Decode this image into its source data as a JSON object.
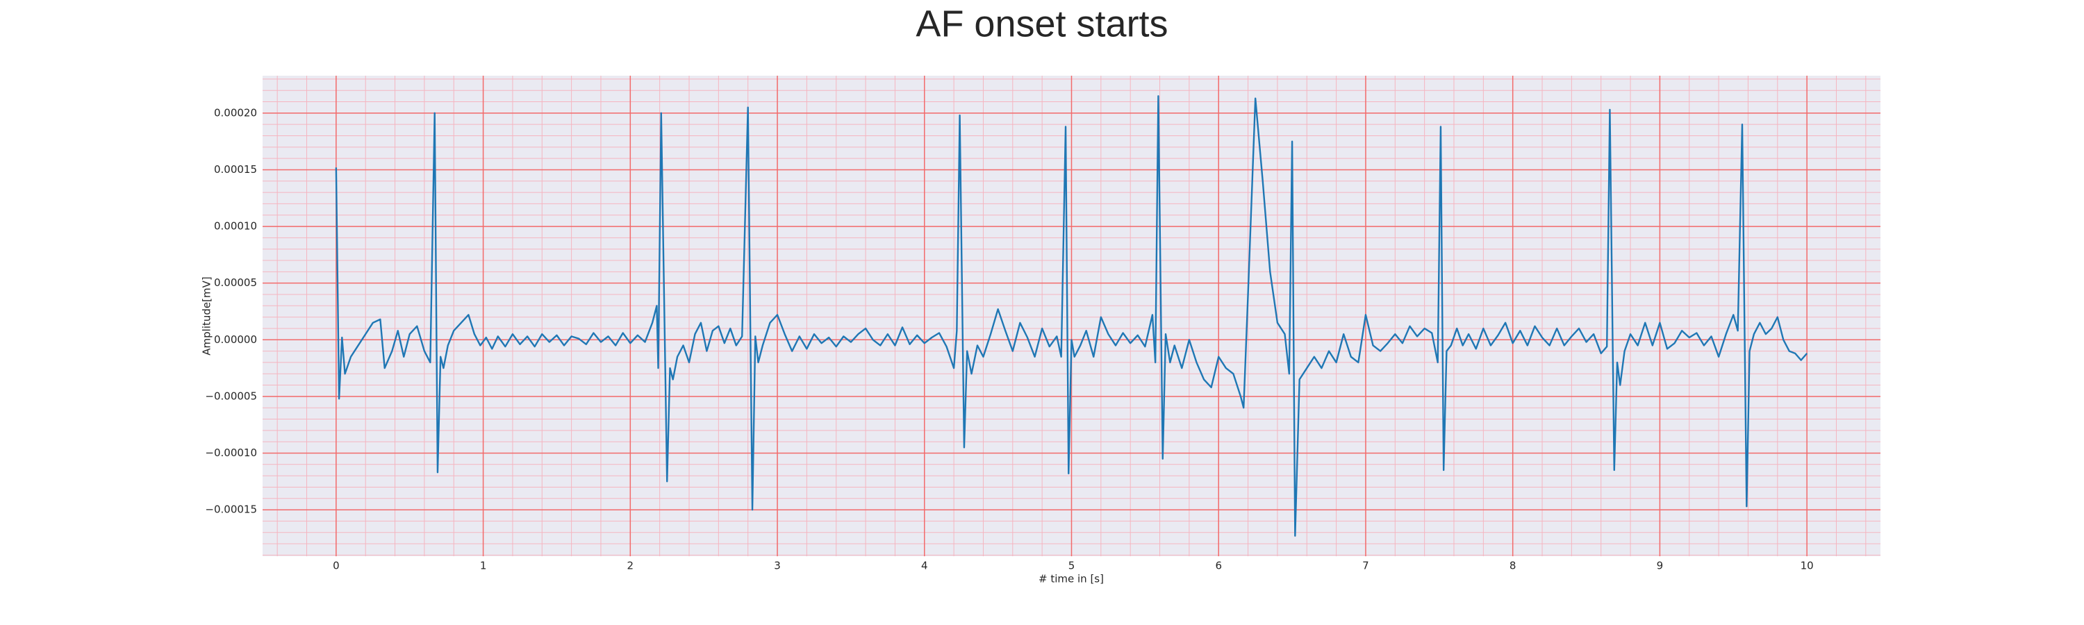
{
  "chart_data": {
    "type": "line",
    "title": "AF onset starts",
    "x_label": "# time in [s]",
    "y_label": "Amplitude[mV]",
    "color": "#1f77b4",
    "background": "#eaeaf2",
    "grid": true,
    "grid_color": "#f26b6b",
    "minor_grid": true,
    "minor_grid_color": "#f5b5c0",
    "minor_divisions": 5,
    "x": [
      0,
      0.02,
      0.04,
      0.06,
      0.1,
      0.15,
      0.2,
      0.25,
      0.3,
      0.33,
      0.38,
      0.42,
      0.46,
      0.5,
      0.55,
      0.6,
      0.64,
      0.67,
      0.69,
      0.71,
      0.73,
      0.76,
      0.8,
      0.85,
      0.9,
      0.94,
      0.98,
      1.02,
      1.06,
      1.1,
      1.15,
      1.2,
      1.25,
      1.3,
      1.35,
      1.4,
      1.45,
      1.5,
      1.55,
      1.6,
      1.65,
      1.7,
      1.75,
      1.8,
      1.85,
      1.9,
      1.95,
      2.0,
      2.05,
      2.1,
      2.15,
      2.18,
      2.19,
      2.21,
      2.25,
      2.27,
      2.29,
      2.32,
      2.36,
      2.4,
      2.44,
      2.48,
      2.52,
      2.56,
      2.6,
      2.64,
      2.68,
      2.72,
      2.76,
      2.8,
      2.83,
      2.85,
      2.87,
      2.9,
      2.95,
      3.0,
      3.05,
      3.1,
      3.15,
      3.2,
      3.25,
      3.3,
      3.35,
      3.4,
      3.45,
      3.5,
      3.55,
      3.6,
      3.65,
      3.7,
      3.75,
      3.8,
      3.85,
      3.9,
      3.95,
      4.0,
      4.05,
      4.1,
      4.15,
      4.2,
      4.22,
      4.24,
      4.27,
      4.29,
      4.32,
      4.36,
      4.4,
      4.45,
      4.5,
      4.55,
      4.6,
      4.65,
      4.7,
      4.75,
      4.8,
      4.85,
      4.9,
      4.93,
      4.96,
      4.98,
      5.0,
      5.02,
      5.06,
      5.1,
      5.15,
      5.2,
      5.25,
      5.3,
      5.35,
      5.4,
      5.45,
      5.5,
      5.55,
      5.57,
      5.59,
      5.62,
      5.64,
      5.67,
      5.7,
      5.75,
      5.8,
      5.85,
      5.9,
      5.95,
      6.0,
      6.05,
      6.1,
      6.15,
      6.17,
      6.2,
      6.25,
      6.3,
      6.35,
      6.4,
      6.45,
      6.48,
      6.5,
      6.52,
      6.55,
      6.6,
      6.65,
      6.7,
      6.75,
      6.8,
      6.85,
      6.9,
      6.95,
      7.0,
      7.05,
      7.1,
      7.15,
      7.2,
      7.25,
      7.3,
      7.35,
      7.4,
      7.45,
      7.49,
      7.51,
      7.53,
      7.55,
      7.58,
      7.62,
      7.66,
      7.7,
      7.75,
      7.8,
      7.85,
      7.9,
      7.95,
      8.0,
      8.05,
      8.1,
      8.15,
      8.2,
      8.25,
      8.3,
      8.35,
      8.4,
      8.45,
      8.5,
      8.55,
      8.6,
      8.64,
      8.66,
      8.69,
      8.71,
      8.73,
      8.76,
      8.8,
      8.85,
      8.9,
      8.95,
      9.0,
      9.05,
      9.1,
      9.15,
      9.2,
      9.25,
      9.3,
      9.35,
      9.4,
      9.45,
      9.5,
      9.53,
      9.56,
      9.59,
      9.61,
      9.64,
      9.68,
      9.72,
      9.76,
      9.8,
      9.84,
      9.88,
      9.92,
      9.96,
      10.0
    ],
    "values": [
      0.000152,
      -5.2e-05,
      2e-06,
      -3e-05,
      -1.5e-05,
      -5e-06,
      5e-06,
      1.5e-05,
      1.8e-05,
      -2.5e-05,
      -1e-05,
      8e-06,
      -1.5e-05,
      5e-06,
      1.2e-05,
      -1e-05,
      -2e-05,
      0.0002,
      -0.000117,
      -1.5e-05,
      -2.5e-05,
      -5e-06,
      8e-06,
      1.5e-05,
      2.2e-05,
      5e-06,
      -5e-06,
      2e-06,
      -8e-06,
      3e-06,
      -6e-06,
      5e-06,
      -4e-06,
      3e-06,
      -6e-06,
      5e-06,
      -2e-06,
      4e-06,
      -5e-06,
      3e-06,
      1e-06,
      -4e-06,
      6e-06,
      -2e-06,
      3e-06,
      -5e-06,
      6e-06,
      -3e-06,
      4e-06,
      -2e-06,
      1.5e-05,
      3e-05,
      -2.5e-05,
      0.0002,
      -0.000125,
      -2.5e-05,
      -3.5e-05,
      -1.5e-05,
      -5e-06,
      -2e-05,
      5e-06,
      1.5e-05,
      -1e-05,
      8e-06,
      1.2e-05,
      -3e-06,
      1e-05,
      -5e-06,
      3e-06,
      0.000205,
      -0.00015,
      3e-06,
      -2e-05,
      -5e-06,
      1.5e-05,
      2.2e-05,
      5e-06,
      -1e-05,
      3e-06,
      -8e-06,
      5e-06,
      -3e-06,
      2e-06,
      -6e-06,
      3e-06,
      -2e-06,
      5e-06,
      1e-05,
      0,
      -5e-06,
      5e-06,
      -5e-06,
      1.1e-05,
      -4e-06,
      4e-06,
      -3e-06,
      2e-06,
      6e-06,
      -6e-06,
      -2.5e-05,
      8e-06,
      0.000198,
      -9.5e-05,
      -1e-05,
      -3e-05,
      -5e-06,
      -1.5e-05,
      5e-06,
      2.7e-05,
      8e-06,
      -1e-05,
      1.5e-05,
      2e-06,
      -1.5e-05,
      1e-05,
      -6e-06,
      3e-06,
      -1.5e-05,
      0.000188,
      -0.000118,
      0,
      -1.5e-05,
      -5e-06,
      8e-06,
      -1.5e-05,
      2e-05,
      5e-06,
      -5e-06,
      6e-06,
      -3e-06,
      4e-06,
      -6e-06,
      2.2e-05,
      -2e-05,
      0.000215,
      -0.000105,
      5e-06,
      -2e-05,
      -5e-06,
      -2.5e-05,
      0,
      -2e-05,
      -3.5e-05,
      -4.2e-05,
      -1.5e-05,
      -2.5e-05,
      -3e-05,
      -5e-05,
      -6e-05,
      4e-05,
      0.000213,
      0.00014,
      6e-05,
      1.5e-05,
      5e-06,
      -3e-05,
      0.000175,
      -0.000173,
      -3.5e-05,
      -2.5e-05,
      -1.5e-05,
      -2.5e-05,
      -1e-05,
      -2e-05,
      5e-06,
      -1.5e-05,
      -2e-05,
      2.2e-05,
      -5e-06,
      -1e-05,
      -3e-06,
      5e-06,
      -3e-06,
      1.2e-05,
      3e-06,
      1e-05,
      6e-06,
      -2e-05,
      0.000188,
      -0.000115,
      -1e-05,
      -5e-06,
      1e-05,
      -5e-06,
      5e-06,
      -8e-06,
      1e-05,
      -5e-06,
      4e-06,
      1.5e-05,
      -3e-06,
      8e-06,
      -5e-06,
      1.2e-05,
      2e-06,
      -5e-06,
      1e-05,
      -5e-06,
      3e-06,
      1e-05,
      -2e-06,
      5e-06,
      -1.2e-05,
      -6e-06,
      0.000203,
      -0.000115,
      -2e-05,
      -4e-05,
      -1e-05,
      5e-06,
      -5e-06,
      1.5e-05,
      -5e-06,
      1.5e-05,
      -8e-06,
      -3e-06,
      8e-06,
      2e-06,
      6e-06,
      -5e-06,
      3e-06,
      -1.5e-05,
      5e-06,
      2.2e-05,
      8e-06,
      0.00019,
      -0.000147,
      -1e-05,
      5e-06,
      1.5e-05,
      5e-06,
      1e-05,
      2e-05,
      0,
      -1e-05,
      -1.2e-05,
      -1.8e-05,
      -1.2e-05
    ],
    "xlim": [
      -0.5,
      10.5
    ],
    "xticks": [
      0,
      1,
      2,
      3,
      4,
      5,
      6,
      7,
      8,
      9,
      10
    ],
    "ylim": [
      -0.000191,
      0.000233
    ],
    "yticks": [
      {
        "value": -0.00015,
        "label": "−0.00015"
      },
      {
        "value": -0.0001,
        "label": "−0.00010"
      },
      {
        "value": -5e-05,
        "label": "−0.00005"
      },
      {
        "value": 0,
        "label": "0.00000"
      },
      {
        "value": 5e-05,
        "label": "0.00005"
      },
      {
        "value": 0.0001,
        "label": "0.00010"
      },
      {
        "value": 0.00015,
        "label": "0.00015"
      },
      {
        "value": 0.0002,
        "label": "0.00020"
      }
    ]
  }
}
